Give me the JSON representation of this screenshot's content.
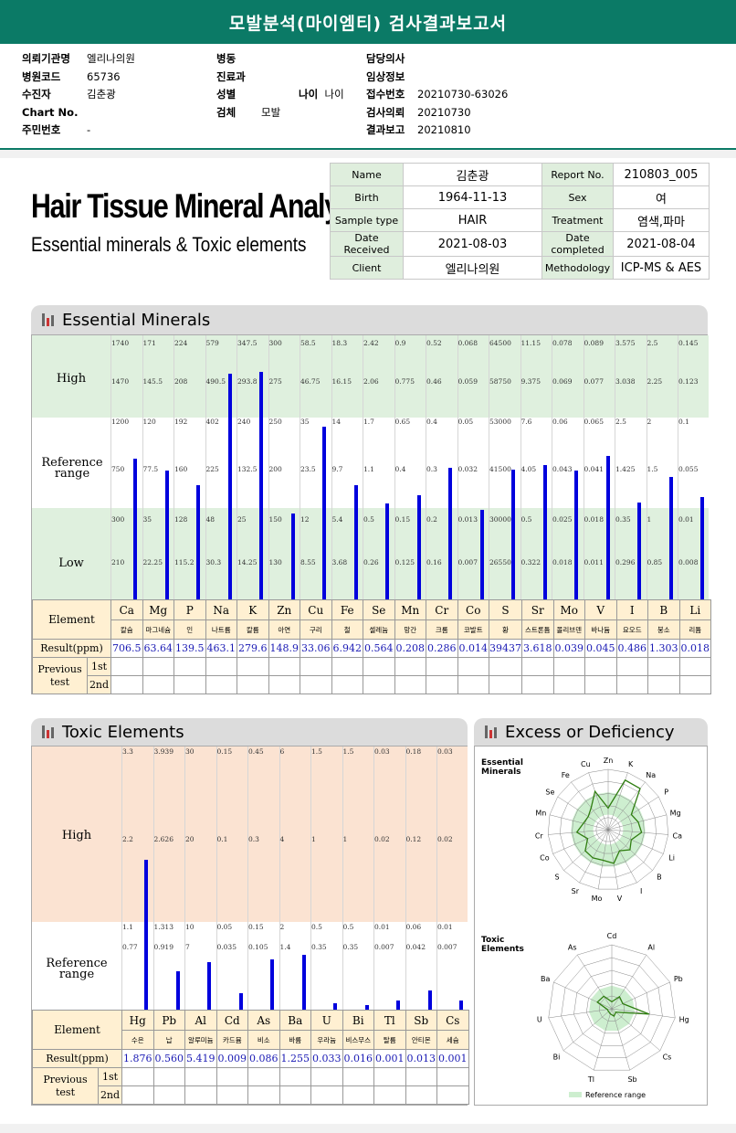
{
  "title": "모발분석(마이엠티) 검사결과보고서",
  "info": {
    "col1": [
      {
        "label": "의뢰기관명",
        "value": "엘리나의원"
      },
      {
        "label": "병원코드",
        "value": "65736"
      },
      {
        "label": "수진자",
        "value": "김춘광"
      },
      {
        "label": "Chart No.",
        "value": ""
      },
      {
        "label": "주민번호",
        "value": "-"
      }
    ],
    "col2": [
      {
        "label": "병동",
        "value": ""
      },
      {
        "label": "진료과",
        "value": ""
      },
      {
        "label": "성별",
        "value": ""
      },
      {
        "label": "검체",
        "value": "모발"
      }
    ],
    "age_label": "나이",
    "age_value": "나이",
    "col3": [
      {
        "label": "담당의사",
        "value": ""
      },
      {
        "label": "임상정보",
        "value": ""
      },
      {
        "label": "접수번호",
        "value": "20210730-63026"
      },
      {
        "label": "검사의뢰",
        "value": "20210730"
      },
      {
        "label": "결과보고",
        "value": "20210810"
      }
    ]
  },
  "report": {
    "title": "Hair Tissue Mineral Analysis",
    "subtitle": "Essential minerals & Toxic elements"
  },
  "patient": {
    "name_label": "Name",
    "name": "김춘광",
    "birth_label": "Birth",
    "birth": "1964-11-13",
    "sample_label": "Sample type",
    "sample": "HAIR",
    "received_label": "Date Received",
    "received": "2021-08-03",
    "client_label": "Client",
    "client": "엘리나의원",
    "report_label": "Report No.",
    "report_no": "210803_005",
    "sex_label": "Sex",
    "sex": "여",
    "treatment_label": "Treatment",
    "treatment": "염색,파마",
    "completed_label": "Date completed",
    "completed": "2021-08-04",
    "method_label": "Methodology",
    "method": "ICP-MS & AES"
  },
  "essential": {
    "heading": "Essential Minerals",
    "high_label": "High",
    "ref_label": "Reference range",
    "low_label": "Low",
    "element_label": "Element",
    "result_label": "Result(ppm)",
    "previous_label": "Previous test",
    "first": "1st",
    "second": "2nd",
    "symbols": [
      "Ca",
      "Mg",
      "P",
      "Na",
      "K",
      "Zn",
      "Cu",
      "Fe",
      "Se",
      "Mn",
      "Cr",
      "Co",
      "S",
      "Sr",
      "Mo",
      "V",
      "I",
      "B",
      "Li"
    ],
    "names": [
      "칼슘",
      "마그네슘",
      "인",
      "나트륨",
      "칼륨",
      "아연",
      "구리",
      "철",
      "셀레늄",
      "망간",
      "크롬",
      "코발트",
      "황",
      "스트론튬",
      "몰리브덴",
      "바나듐",
      "요오드",
      "붕소",
      "리튬"
    ],
    "results": [
      "706.5",
      "63.64",
      "139.5",
      "463.1",
      "279.6",
      "148.9",
      "33.06",
      "6.942",
      "0.564",
      "0.208",
      "0.286",
      "0.014",
      "39437",
      "3.618",
      "0.039",
      "0.045",
      "0.486",
      "1.303",
      "0.018"
    ],
    "ticks": [
      [
        "1740",
        "1470",
        "1200",
        "750",
        "300",
        "210"
      ],
      [
        "171",
        "145.5",
        "120",
        "77.5",
        "35",
        "22.25"
      ],
      [
        "224",
        "208",
        "192",
        "160",
        "128",
        "115.2"
      ],
      [
        "579",
        "490.5",
        "402",
        "225",
        "48",
        "30.3"
      ],
      [
        "347.5",
        "293.8",
        "240",
        "132.5",
        "25",
        "14.25"
      ],
      [
        "300",
        "275",
        "250",
        "200",
        "150",
        "130"
      ],
      [
        "58.5",
        "46.75",
        "35",
        "23.5",
        "12",
        "8.55"
      ],
      [
        "18.3",
        "16.15",
        "14",
        "9.7",
        "5.4",
        "3.68"
      ],
      [
        "2.42",
        "2.06",
        "1.7",
        "1.1",
        "0.5",
        "0.26"
      ],
      [
        "0.9",
        "0.775",
        "0.65",
        "0.4",
        "0.15",
        "0.125"
      ],
      [
        "0.52",
        "0.46",
        "0.4",
        "0.3",
        "0.2",
        "0.16"
      ],
      [
        "0.068",
        "0.059",
        "0.05",
        "0.032",
        "0.013",
        "0.007"
      ],
      [
        "64500",
        "58750",
        "53000",
        "41500",
        "30000",
        "26550"
      ],
      [
        "11.15",
        "9.375",
        "7.6",
        "4.05",
        "0.5",
        "0.322"
      ],
      [
        "0.078",
        "0.069",
        "0.06",
        "0.043",
        "0.025",
        "0.018"
      ],
      [
        "0.089",
        "0.077",
        "0.065",
        "0.041",
        "0.018",
        "0.011"
      ],
      [
        "3.575",
        "3.038",
        "2.5",
        "1.425",
        "0.35",
        "0.296"
      ],
      [
        "2.5",
        "2.25",
        "2",
        "1.5",
        "1",
        "0.85"
      ],
      [
        "0.145",
        "0.123",
        "0.1",
        "0.055",
        "0.01",
        "0.008"
      ]
    ],
    "levels": [
      0.533,
      0.489,
      0.431,
      0.856,
      0.862,
      0.324,
      0.655,
      0.431,
      0.363,
      0.394,
      0.497,
      0.339,
      0.492,
      0.508,
      0.489,
      0.544,
      0.366,
      0.465,
      0.388
    ]
  },
  "toxic": {
    "heading": "Toxic Elements",
    "high_label": "High",
    "ref_label": "Reference range",
    "element_label": "Element",
    "result_label": "Result(ppm)",
    "previous_label": "Previous test",
    "first": "1st",
    "second": "2nd",
    "symbols": [
      "Hg",
      "Pb",
      "Al",
      "Cd",
      "As",
      "Ba",
      "U",
      "Bi",
      "Tl",
      "Sb",
      "Cs"
    ],
    "names": [
      "수은",
      "납",
      "알루미늄",
      "카드뮴",
      "비소",
      "바륨",
      "우라늄",
      "비스무스",
      "탈륨",
      "안티몬",
      "세슘"
    ],
    "results": [
      "1.876",
      "0.560",
      "5.419",
      "0.009",
      "0.086",
      "1.255",
      "0.033",
      "0.016",
      "0.001",
      "0.013",
      "0.001"
    ],
    "ticks": [
      [
        "3.3",
        "2.2",
        "1.1",
        "0.77"
      ],
      [
        "3.939",
        "2.626",
        "1.313",
        "0.919"
      ],
      [
        "30",
        "20",
        "10",
        "7"
      ],
      [
        "0.15",
        "0.1",
        "0.05",
        "0.035"
      ],
      [
        "0.45",
        "0.3",
        "0.15",
        "0.105"
      ],
      [
        "6",
        "4",
        "2",
        "1.4"
      ],
      [
        "1.5",
        "1",
        "0.5",
        "0.35"
      ],
      [
        "1.5",
        "1",
        "0.5",
        "0.35"
      ],
      [
        "0.03",
        "0.02",
        "0.01",
        "0.007"
      ],
      [
        "0.18",
        "0.12",
        "0.06",
        "0.042"
      ],
      [
        "0.03",
        "0.02",
        "0.01",
        "0.007"
      ]
    ],
    "levels": [
      0.568,
      0.146,
      0.182,
      0.062,
      0.192,
      0.209,
      0.023,
      0.018,
      0.036,
      0.074,
      0.034
    ]
  },
  "excess": {
    "heading": "Excess or Deficiency",
    "essential_label": "Essential Minerals",
    "toxic_label": "Toxic Elements",
    "reference_label": "Reference range",
    "essential_axes": [
      "Ca",
      "Mg",
      "P",
      "Na",
      "K",
      "Zn",
      "Cu",
      "Fe",
      "Se",
      "Mn",
      "Cr",
      "Co",
      "S",
      "Sr",
      "Mo",
      "V",
      "I",
      "B",
      "Li"
    ],
    "essential_radar_order": [
      "Zn",
      "K",
      "Na",
      "P",
      "Mg",
      "Ca",
      "Li",
      "B",
      "I",
      "V",
      "Mo",
      "Sr",
      "S",
      "Co",
      "Cr",
      "Mn",
      "Se",
      "Fe",
      "Cu"
    ],
    "toxic_radar_order": [
      "Cd",
      "Al",
      "Pb",
      "Hg",
      "Cs",
      "Sb",
      "Tl",
      "Bi",
      "U",
      "Ba",
      "As"
    ],
    "colors": {
      "line": "#2f7d10",
      "band": "#cdeecf",
      "bar": "#0000dd",
      "accent": "#0b7a66"
    }
  }
}
